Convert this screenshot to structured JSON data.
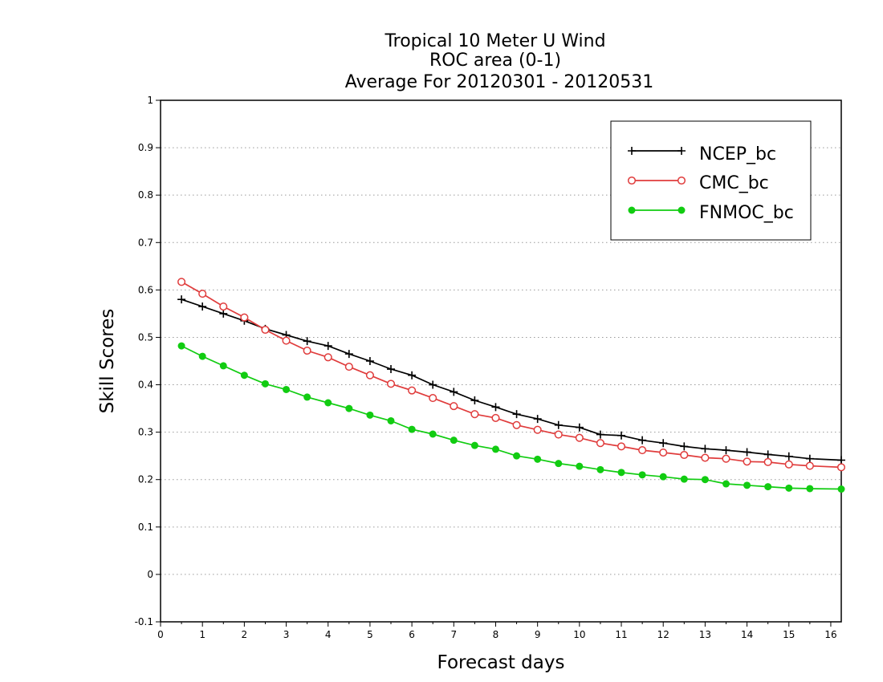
{
  "chart_data": {
    "type": "line",
    "title_lines": [
      "Tropical 10 Meter U Wind",
      "ROC area (0-1)",
      "Average For 20120301 - 20120531"
    ],
    "xlabel": "Forecast days",
    "ylabel": "Skill Scores",
    "xlim": [
      0,
      16.25
    ],
    "ylim": [
      -0.1,
      1
    ],
    "x_ticks": [
      0,
      1,
      2,
      3,
      4,
      5,
      6,
      7,
      8,
      9,
      10,
      11,
      12,
      13,
      14,
      15,
      16
    ],
    "x_tick_labels": [
      "0",
      "1",
      "2",
      "3",
      "4",
      "5",
      "6",
      "7",
      "8",
      "9",
      "10",
      "11",
      "12",
      "13",
      "14",
      "15",
      "16"
    ],
    "y_ticks": [
      -0.1,
      0,
      0.1,
      0.2,
      0.3,
      0.4,
      0.5,
      0.6,
      0.7,
      0.8,
      0.9,
      1
    ],
    "y_tick_labels": [
      "-0.1",
      "0",
      "0.1",
      "0.2",
      "0.3",
      "0.4",
      "0.5",
      "0.6",
      "0.7",
      "0.8",
      "0.9",
      "1"
    ],
    "grid": "dotted horizontal",
    "legend_position": "top-right",
    "x": [
      0.5,
      1,
      1.5,
      2,
      2.5,
      3,
      3.5,
      4,
      4.5,
      5,
      5.5,
      6,
      6.5,
      7,
      7.5,
      8,
      8.5,
      9,
      9.5,
      10,
      10.5,
      11,
      11.5,
      12,
      12.5,
      13,
      13.5,
      14,
      14.5,
      15,
      15.5,
      16.25
    ],
    "series": [
      {
        "name": "NCEP_bc",
        "color": "#000000",
        "marker": "plus",
        "values": [
          0.58,
          0.565,
          0.55,
          0.535,
          0.518,
          0.505,
          0.492,
          0.482,
          0.465,
          0.45,
          0.433,
          0.42,
          0.4,
          0.385,
          0.367,
          0.353,
          0.338,
          0.328,
          0.315,
          0.31,
          0.295,
          0.293,
          0.283,
          0.277,
          0.27,
          0.265,
          0.262,
          0.258,
          0.253,
          0.249,
          0.244,
          0.241
        ]
      },
      {
        "name": "CMC_bc",
        "color": "#e03c3c",
        "marker": "open-circle",
        "values": [
          0.617,
          0.592,
          0.565,
          0.542,
          0.516,
          0.493,
          0.472,
          0.458,
          0.438,
          0.42,
          0.402,
          0.388,
          0.372,
          0.355,
          0.338,
          0.33,
          0.315,
          0.305,
          0.295,
          0.288,
          0.277,
          0.27,
          0.262,
          0.257,
          0.252,
          0.246,
          0.244,
          0.238,
          0.237,
          0.232,
          0.229,
          0.226
        ]
      },
      {
        "name": "FNMOC_bc",
        "color": "#11cc11",
        "marker": "filled-circle",
        "values": [
          0.482,
          0.46,
          0.44,
          0.42,
          0.402,
          0.39,
          0.374,
          0.362,
          0.35,
          0.336,
          0.324,
          0.306,
          0.296,
          0.283,
          0.272,
          0.264,
          0.25,
          0.243,
          0.234,
          0.228,
          0.221,
          0.215,
          0.21,
          0.206,
          0.201,
          0.2,
          0.191,
          0.188,
          0.185,
          0.182,
          0.181,
          0.18
        ]
      }
    ]
  }
}
